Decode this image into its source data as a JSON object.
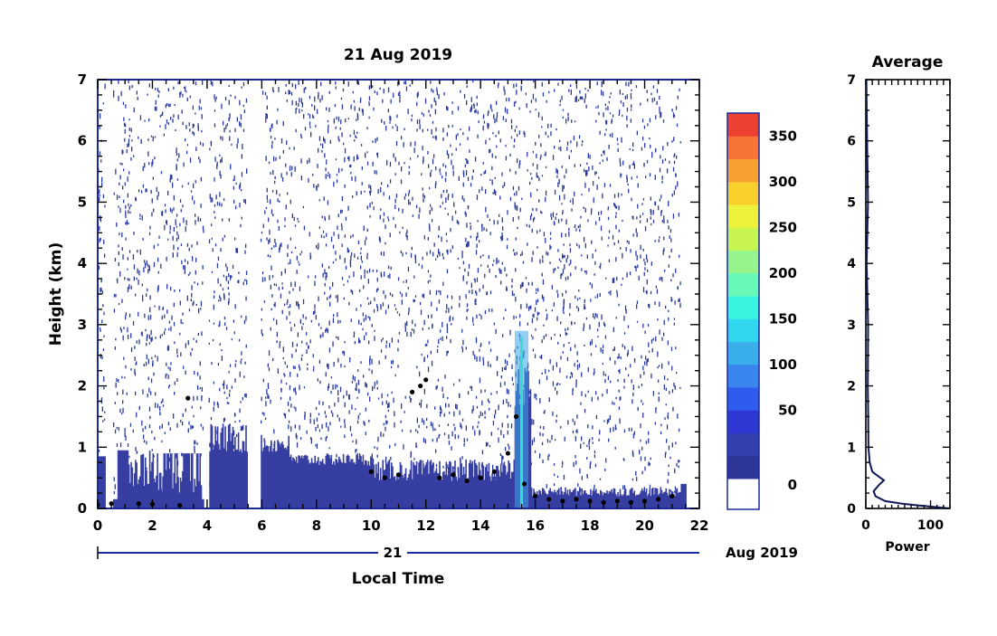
{
  "chart_data": [
    {
      "type": "heatmap",
      "title": "21 Aug 2019",
      "xlabel": "Local Time",
      "ylabel": "Height (km)",
      "xlim": [
        0,
        22
      ],
      "ylim": [
        0,
        7
      ],
      "x_ticks": [
        0,
        2,
        4,
        6,
        8,
        10,
        12,
        14,
        16,
        18,
        20,
        22
      ],
      "y_ticks": [
        0,
        1,
        2,
        3,
        4,
        5,
        6,
        7
      ],
      "date_axis": {
        "day_label": "21",
        "month_year_label": "Aug 2019"
      },
      "colorbar": {
        "ticks": [
          0,
          50,
          100,
          150,
          200,
          250,
          300,
          350
        ],
        "colors": [
          "#2d3597",
          "#3440b0",
          "#2e37d2",
          "#2f5bee",
          "#3a86ee",
          "#3aaeea",
          "#30d6ee",
          "#38f4e0",
          "#68f8b8",
          "#96f48c",
          "#c8f450",
          "#ecf23a",
          "#f8d02c",
          "#f8a030",
          "#f87434",
          "#ee4030"
        ],
        "range": [
          -25,
          375
        ]
      },
      "cloud_base": [
        {
          "x": 0.0,
          "h": 0.06
        },
        {
          "x": 0.5,
          "h": 0.08
        },
        {
          "x": 1.5,
          "h": 0.08
        },
        {
          "x": 2.0,
          "h": 0.07
        },
        {
          "x": 3.0,
          "h": 0.05
        },
        {
          "x": 3.3,
          "h": 1.8
        },
        {
          "x": 10.0,
          "h": 0.6
        },
        {
          "x": 10.5,
          "h": 0.5
        },
        {
          "x": 11.0,
          "h": 0.55
        },
        {
          "x": 11.5,
          "h": 1.9
        },
        {
          "x": 11.8,
          "h": 2.0
        },
        {
          "x": 12.0,
          "h": 2.1
        },
        {
          "x": 12.5,
          "h": 0.5
        },
        {
          "x": 13.0,
          "h": 0.55
        },
        {
          "x": 13.5,
          "h": 0.45
        },
        {
          "x": 14.0,
          "h": 0.5
        },
        {
          "x": 14.5,
          "h": 0.6
        },
        {
          "x": 15.0,
          "h": 0.9
        },
        {
          "x": 15.3,
          "h": 1.5
        },
        {
          "x": 15.6,
          "h": 0.4
        },
        {
          "x": 16.0,
          "h": 0.2
        },
        {
          "x": 16.5,
          "h": 0.15
        },
        {
          "x": 17.0,
          "h": 0.12
        },
        {
          "x": 17.5,
          "h": 0.15
        },
        {
          "x": 18.0,
          "h": 0.12
        },
        {
          "x": 18.5,
          "h": 0.1
        },
        {
          "x": 19.0,
          "h": 0.12
        },
        {
          "x": 19.5,
          "h": 0.1
        },
        {
          "x": 20.0,
          "h": 0.12
        },
        {
          "x": 20.5,
          "h": 0.15
        },
        {
          "x": 21.0,
          "h": 0.2
        }
      ]
    },
    {
      "type": "line",
      "title": "Average",
      "xlabel": "Power",
      "ylabel": "",
      "xlim": [
        0,
        130
      ],
      "ylim": [
        0,
        7
      ],
      "x_ticks": [
        0,
        100
      ],
      "y_ticks": [
        0,
        1,
        2,
        3,
        4,
        5,
        6,
        7
      ],
      "points": [
        {
          "x": 130,
          "y": 0.0
        },
        {
          "x": 90,
          "y": 0.04
        },
        {
          "x": 55,
          "y": 0.08
        },
        {
          "x": 30,
          "y": 0.12
        },
        {
          "x": 15,
          "y": 0.2
        },
        {
          "x": 12,
          "y": 0.28
        },
        {
          "x": 20,
          "y": 0.38
        },
        {
          "x": 28,
          "y": 0.46
        },
        {
          "x": 20,
          "y": 0.52
        },
        {
          "x": 10,
          "y": 0.6
        },
        {
          "x": 6,
          "y": 0.75
        },
        {
          "x": 4,
          "y": 1.0
        },
        {
          "x": 4,
          "y": 1.5
        },
        {
          "x": 3.5,
          "y": 2.0
        },
        {
          "x": 3,
          "y": 3.0
        },
        {
          "x": 2.5,
          "y": 4.0
        },
        {
          "x": 2,
          "y": 5.0
        },
        {
          "x": 2,
          "y": 6.0
        },
        {
          "x": 1.5,
          "y": 7.0
        }
      ]
    }
  ]
}
